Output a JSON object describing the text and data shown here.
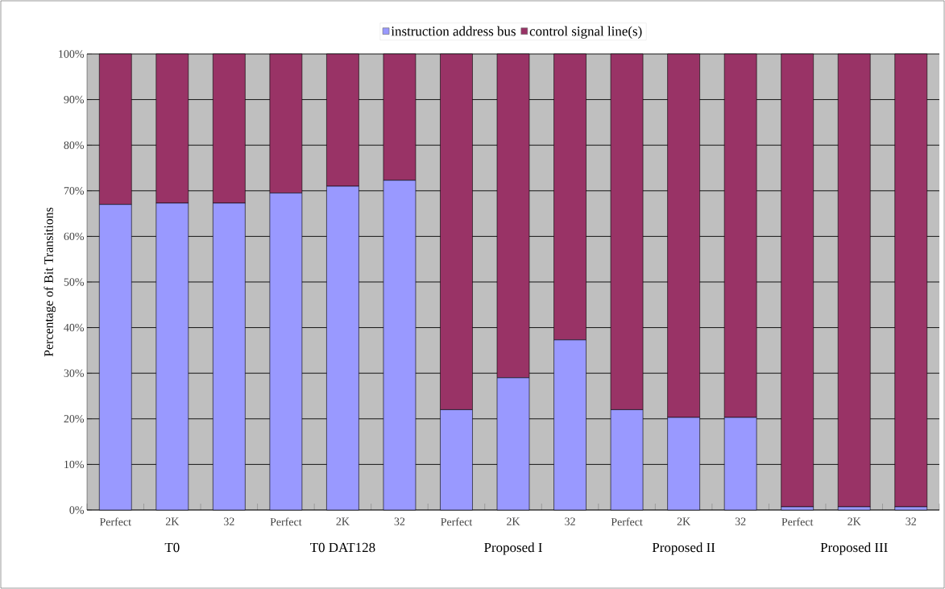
{
  "chart_data": {
    "type": "bar",
    "stacked": true,
    "ylabel": "Percentage of Bit Transitions",
    "categories": [
      "Perfect",
      "2K",
      "32",
      "Perfect",
      "2K",
      "32",
      "Perfect",
      "2K",
      "32",
      "Perfect",
      "2K",
      "32",
      "Perfect",
      "2K",
      "32"
    ],
    "series": [
      {
        "name": "instruction address bus",
        "color": "#9999ff",
        "values": [
          67,
          67.3,
          67.3,
          69.5,
          71,
          72.3,
          22,
          29,
          37.3,
          22,
          20.3,
          20.3,
          0.7,
          0.7,
          0.7
        ]
      },
      {
        "name": "control signal line(s)",
        "color": "#993366",
        "values": [
          33,
          32.7,
          32.7,
          30.5,
          29,
          27.7,
          78,
          71,
          62.7,
          78,
          79.7,
          79.7,
          99.3,
          99.3,
          99.3
        ]
      }
    ],
    "ylim": [
      0,
      100
    ],
    "yticks": [
      {
        "value": 0,
        "label": "0%"
      },
      {
        "value": 10,
        "label": "10%"
      },
      {
        "value": 20,
        "label": "20%"
      },
      {
        "value": 30,
        "label": "30%"
      },
      {
        "value": 40,
        "label": "40%"
      },
      {
        "value": 50,
        "label": "50%"
      },
      {
        "value": 60,
        "label": "60%"
      },
      {
        "value": 70,
        "label": "70%"
      },
      {
        "value": 80,
        "label": "80%"
      },
      {
        "value": 90,
        "label": "90%"
      },
      {
        "value": 100,
        "label": "100%"
      }
    ],
    "grid": "y",
    "legend": "top",
    "annotations": [
      "T0",
      "T0 DAT128",
      "Proposed I",
      "Proposed II",
      "Proposed III"
    ]
  }
}
